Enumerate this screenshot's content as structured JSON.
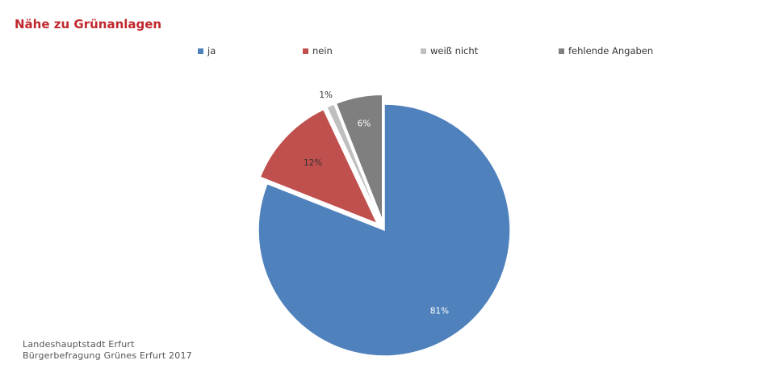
{
  "chart_data": {
    "type": "pie",
    "title": "Nähe zu Grünanlagen",
    "legend_position": "top",
    "slices": [
      {
        "name": "ja",
        "value": 81,
        "label": "81%",
        "color": "#4f81bd",
        "exploded": false
      },
      {
        "name": "nein",
        "value": 12,
        "label": "12%",
        "color": "#c0504d",
        "exploded": true
      },
      {
        "name": "weiß nicht",
        "value": 1,
        "label": "1%",
        "color": "#bfbfbf",
        "exploded": true
      },
      {
        "name": "fehlende Angaben",
        "value": 6,
        "label": "6%",
        "color": "#7f7f7f",
        "exploded": true
      }
    ]
  },
  "footer": {
    "line1": "Landeshauptstadt Erfurt",
    "line2": "Bürgerbefragung Grünes Erfurt 2017"
  }
}
